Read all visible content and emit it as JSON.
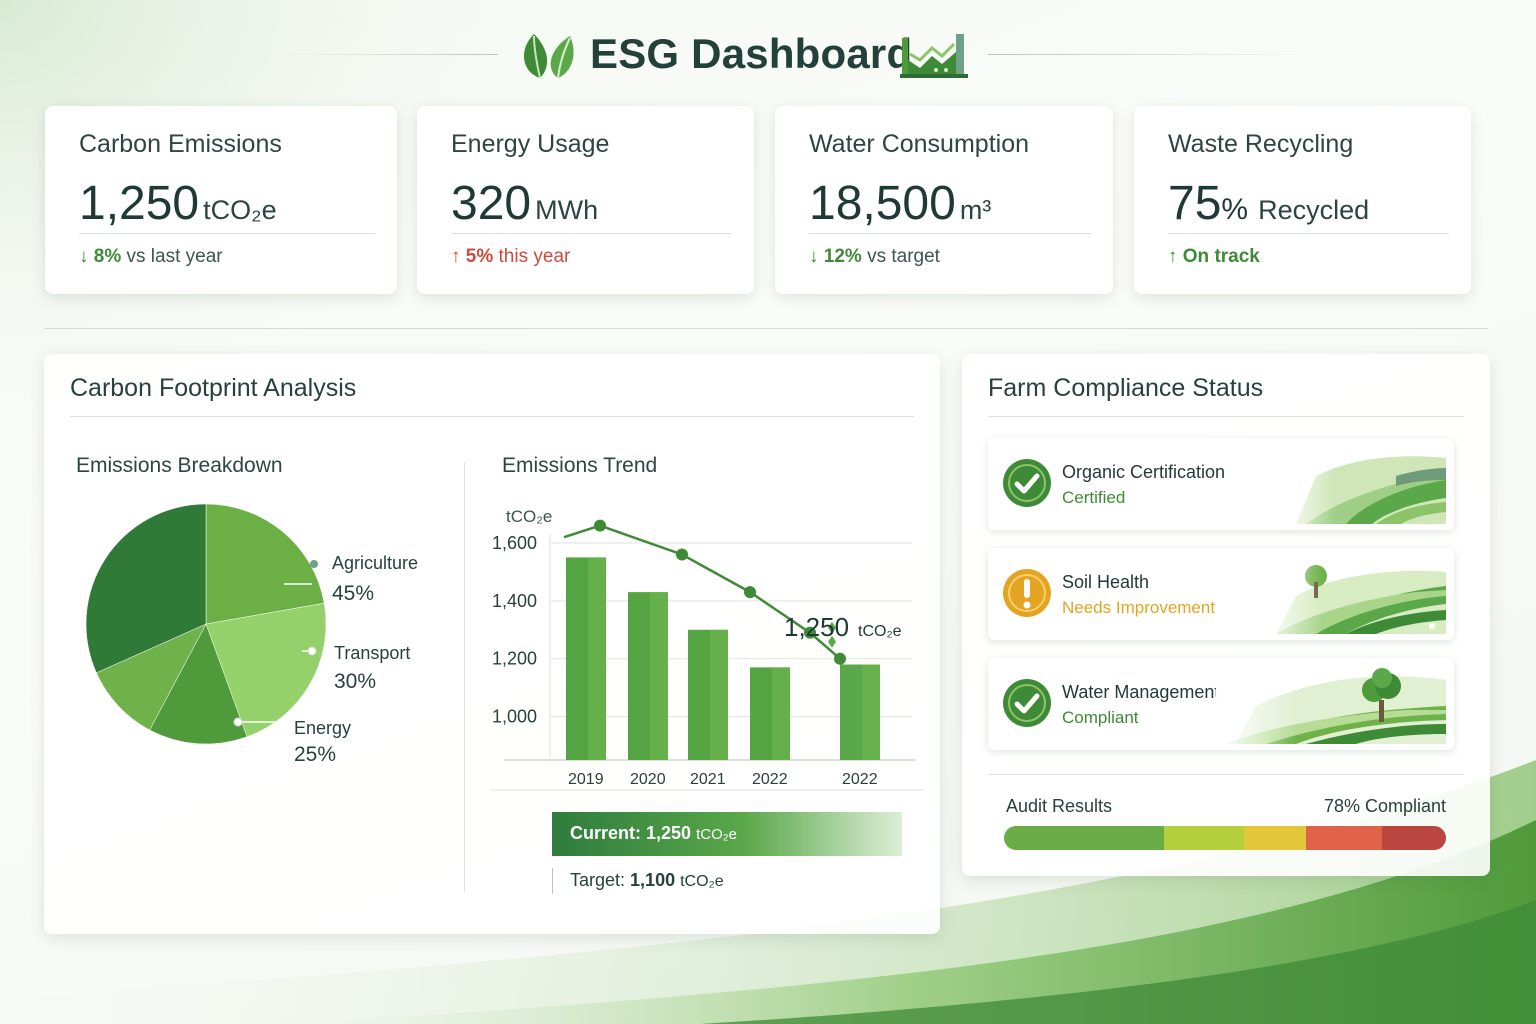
{
  "header": {
    "title": "ESG Dashboard",
    "left_icon": "leaf-icon",
    "right_icon": "factory-icon"
  },
  "kpis": [
    {
      "title": "Carbon Emissions",
      "value": "1,250",
      "unit": "tCO₂e",
      "delta_value": "8%",
      "delta_text": "vs last year",
      "direction": "down",
      "color": "#3f8a37"
    },
    {
      "title": "Energy Usage",
      "value": "320",
      "unit": "MWh",
      "delta_value": "5%",
      "delta_text": "this year",
      "direction": "up",
      "color": "#cf4a3c"
    },
    {
      "title": "Water Consumption",
      "value": "18,500",
      "unit": "m³",
      "delta_value": "12%",
      "delta_text": "vs target",
      "direction": "down",
      "color": "#3f8a37"
    },
    {
      "title": "Waste Recycling",
      "value": "75",
      "value_suffix": "%",
      "unit": "Recycled",
      "delta_value": "On track",
      "delta_text": "",
      "direction": "up",
      "color": "#3f8a37"
    }
  ],
  "carbon_panel": {
    "title": "Carbon Footprint Analysis",
    "breakdown_title": "Emissions Breakdown",
    "trend_title": "Emissions Trend",
    "current_label": "Current:",
    "current_value": "1,250",
    "current_unit": "tCO₂e",
    "target_label": "Target:",
    "target_value": "1,100",
    "target_unit": "tCO₂e"
  },
  "chart_data": [
    {
      "type": "pie",
      "title": "Emissions Breakdown",
      "slices": [
        {
          "label": "Agriculture",
          "value": 45,
          "display": "45%"
        },
        {
          "label": "Transport",
          "value": 30,
          "display": "30%"
        },
        {
          "label": "Energy",
          "value": 25,
          "display": "25%"
        }
      ],
      "colors": [
        "#6cb045",
        "#94d16a",
        "#4f9a3b",
        "#6fb24a",
        "#2f7a36"
      ]
    },
    {
      "type": "bar",
      "title": "Emissions Trend",
      "ylabel": "tCO₂e",
      "ylim": [
        850,
        1700
      ],
      "yticks": [
        1000,
        1200,
        1400,
        1600
      ],
      "ytick_labels": [
        "1,000",
        "1,200",
        "1,400",
        "1,600"
      ],
      "categories": [
        "2019",
        "2020",
        "2021",
        "2022",
        "2022"
      ],
      "bar_values": [
        1550,
        1430,
        1300,
        1170,
        1180
      ],
      "line_values": [
        1660,
        1560,
        1430,
        1290,
        1200
      ],
      "annotation": {
        "value": "1,250",
        "unit": "tCO₂e"
      },
      "grid": true
    }
  ],
  "compliance": {
    "title": "Farm Compliance Status",
    "items": [
      {
        "name": "Organic Certification",
        "status": "Certified",
        "icon": "check-icon",
        "color": "#3f8a37"
      },
      {
        "name": "Soil Health",
        "status": "Needs Improvement",
        "icon": "warning-icon",
        "color": "#e3a423"
      },
      {
        "name": "Water Management",
        "status": "Compliant",
        "icon": "check-icon",
        "color": "#3f8a37"
      }
    ],
    "audit_label": "Audit Results",
    "audit_value": "78% Compliant",
    "audit_level": 0.78
  }
}
